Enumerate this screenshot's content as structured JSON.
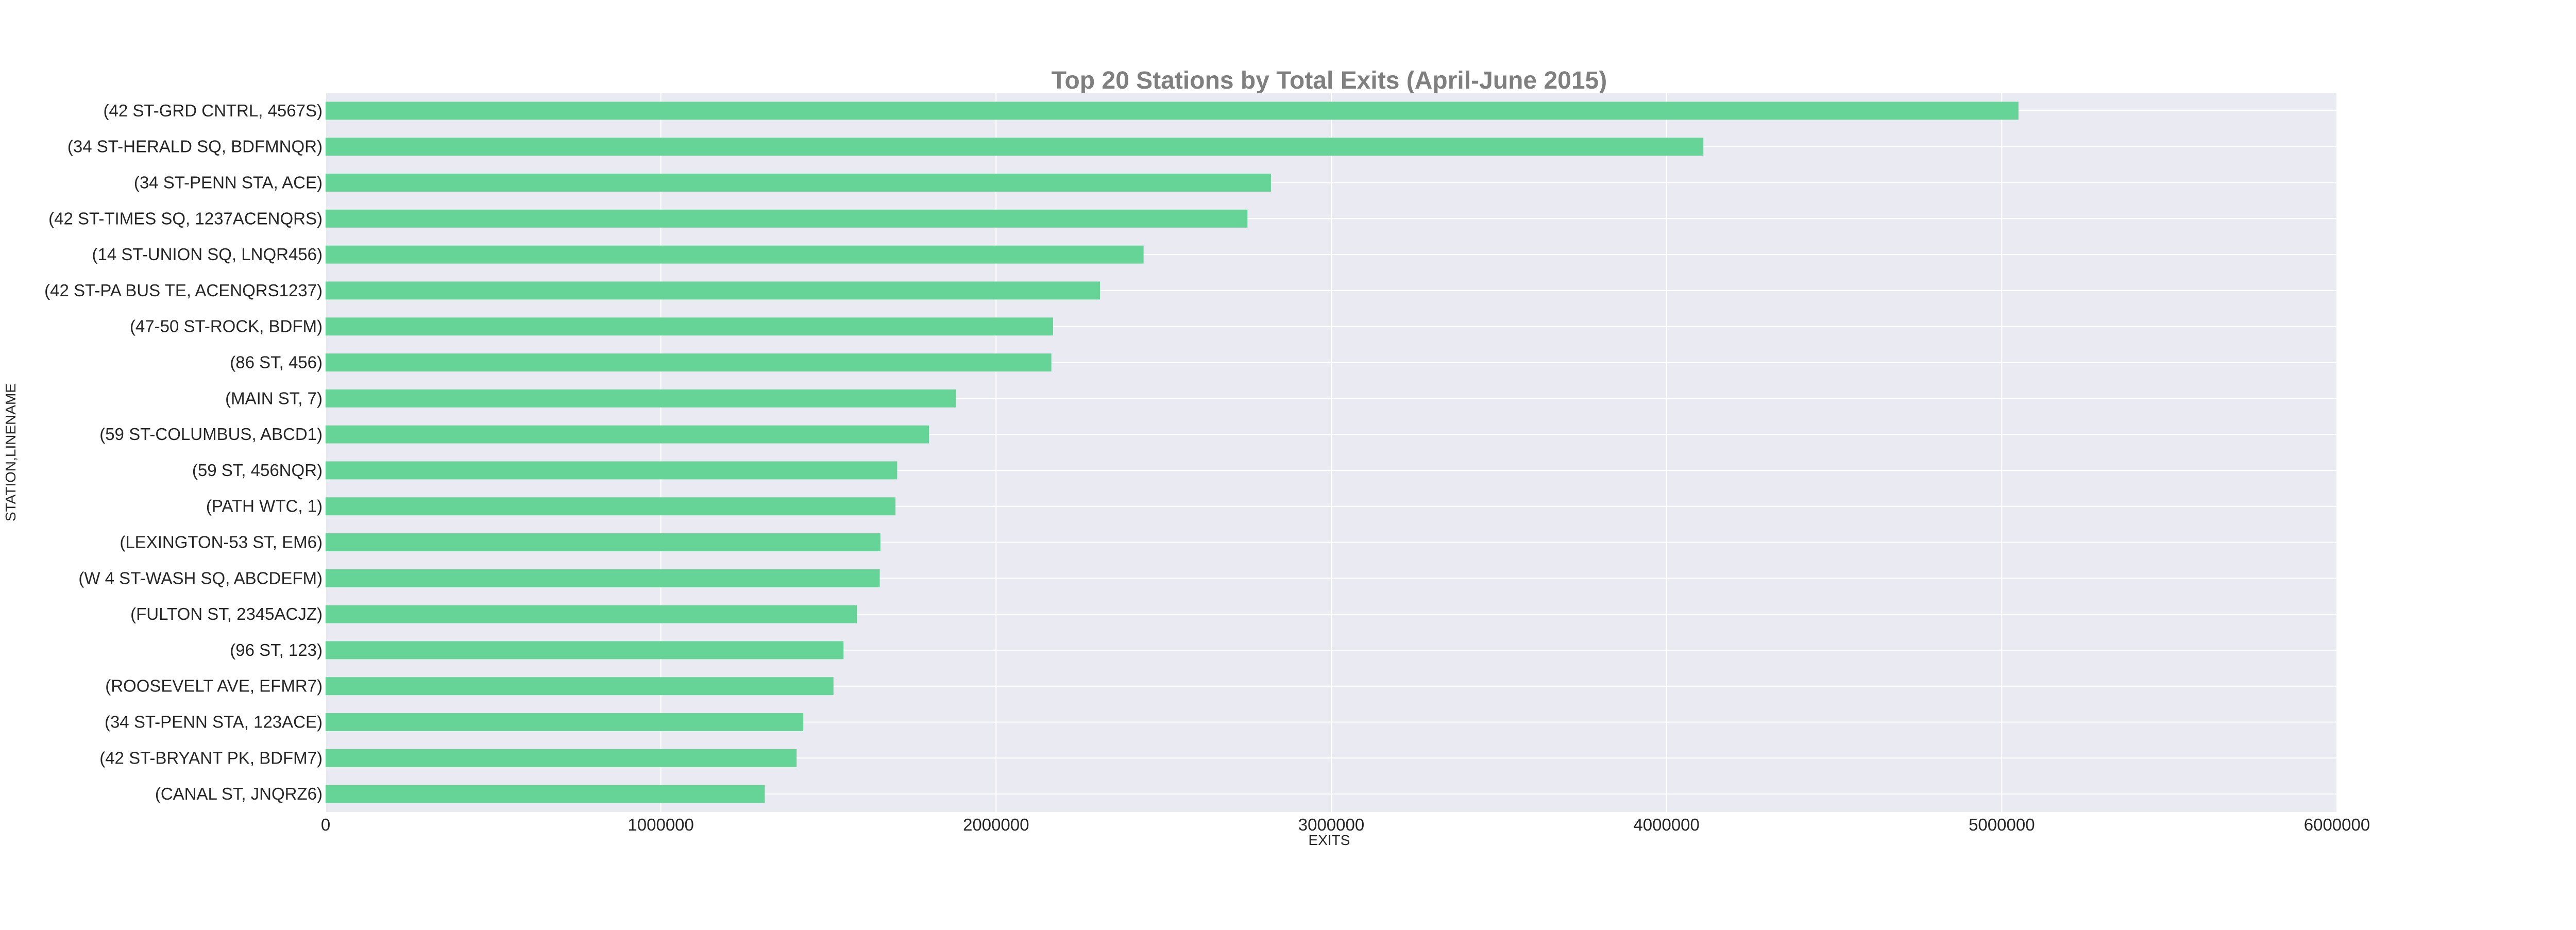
{
  "chart_data": {
    "type": "bar",
    "orientation": "horizontal",
    "title": "Top 20 Stations by Total Exits (April-June 2015)",
    "xlabel": "EXITS",
    "ylabel": "STATION,LINENAME",
    "xlim": [
      0,
      6000000
    ],
    "xticks": [
      "0",
      "1000000",
      "2000000",
      "3000000",
      "4000000",
      "5000000",
      "6000000"
    ],
    "grid": true,
    "bar_color": "#66d497",
    "background_color": "#eaeaf2",
    "categories": [
      "(42 ST-GRD CNTRL, 4567S)",
      "(34 ST-HERALD SQ, BDFMNQR)",
      "(34 ST-PENN STA, ACE)",
      "(42 ST-TIMES SQ, 1237ACENQRS)",
      "(14 ST-UNION SQ, LNQR456)",
      "(42 ST-PA BUS TE, ACENQRS1237)",
      "(47-50 ST-ROCK, BDFM)",
      "(86 ST, 456)",
      "(MAIN ST, 7)",
      "(59 ST-COLUMBUS, ABCD1)",
      "(59 ST, 456NQR)",
      "(PATH WTC, 1)",
      "(LEXINGTON-53 ST, EM6)",
      "(W 4 ST-WASH SQ, ABCDEFM)",
      "(FULTON ST, 2345ACJZ)",
      "(96 ST, 123)",
      "(ROOSEVELT AVE, EFMR7)",
      "(34 ST-PENN STA, 123ACE)",
      "(42 ST-BRYANT PK, BDFM7)",
      "(CANAL ST, JNQRZ6)"
    ],
    "values": [
      5050000,
      4110000,
      2820000,
      2750000,
      2440000,
      2310000,
      2170000,
      2165000,
      1880000,
      1800000,
      1705000,
      1700000,
      1655000,
      1653000,
      1585000,
      1545000,
      1515000,
      1425000,
      1405000,
      1310000
    ]
  }
}
